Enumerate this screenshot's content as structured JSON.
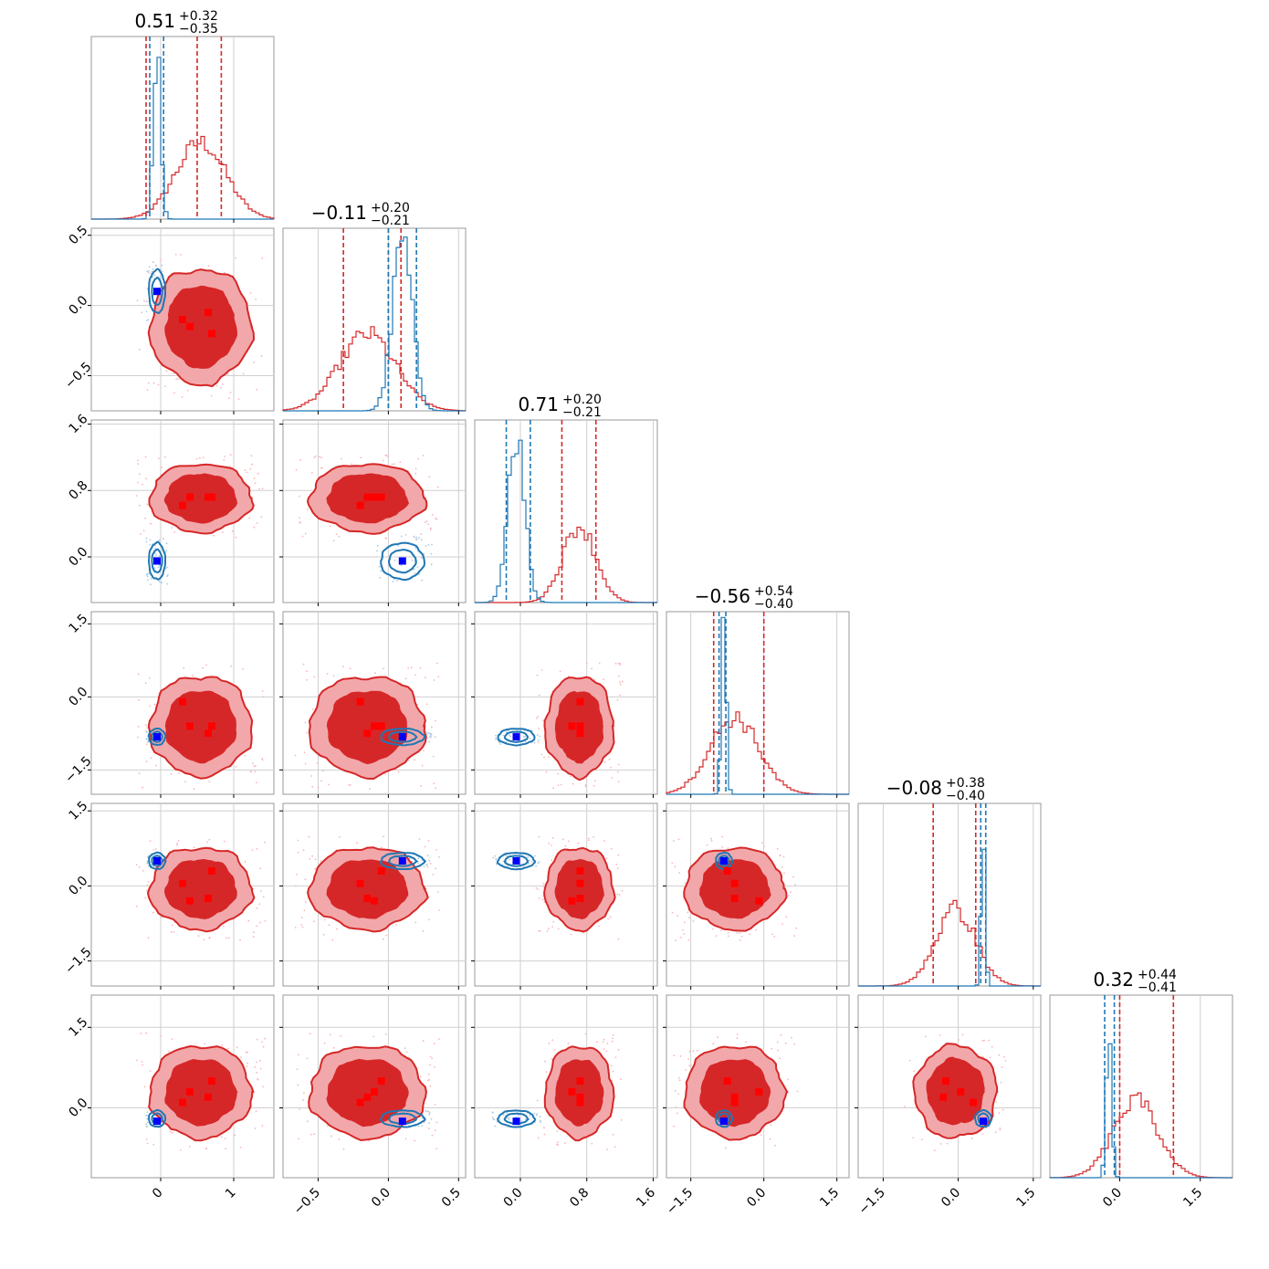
{
  "chart_data": {
    "type": "corner",
    "n_params": 6,
    "colors": {
      "red": "#d62728",
      "red_light": "#f2a8aa",
      "blue": "#1f77b4",
      "marker_blue": "#0000ff",
      "marker_red": "#ff0000"
    },
    "titles": [
      {
        "median": "0.51",
        "plus": "+0.32",
        "minus": "−0.35"
      },
      {
        "median": "−0.11",
        "plus": "+0.20",
        "minus": "−0.21"
      },
      {
        "median": "0.71",
        "plus": "+0.20",
        "minus": "−0.21"
      },
      {
        "median": "−0.56",
        "plus": "+0.54",
        "minus": "−0.40"
      },
      {
        "median": "−0.08",
        "plus": "+0.38",
        "minus": "−0.40"
      },
      {
        "median": "0.32",
        "plus": "+0.44",
        "minus": "−0.41"
      }
    ],
    "ranges": [
      [
        -0.95,
        1.55
      ],
      [
        -0.75,
        0.55
      ],
      [
        -0.55,
        1.65
      ],
      [
        -2.0,
        1.75
      ],
      [
        -2.0,
        1.65
      ],
      [
        -1.3,
        2.1
      ]
    ],
    "ticks": [
      {
        "values": [
          0,
          1
        ],
        "labels": [
          "0",
          "1"
        ]
      },
      {
        "values": [
          -0.5,
          0.0,
          0.5
        ],
        "labels": [
          "−0.5",
          "0.0",
          "0.5"
        ]
      },
      {
        "values": [
          0.0,
          0.8,
          1.6
        ],
        "labels": [
          "0.0",
          "0.8",
          "1.6"
        ]
      },
      {
        "values": [
          -1.5,
          0.0,
          1.5
        ],
        "labels": [
          "−1.5",
          "0.0",
          "1.5"
        ]
      },
      {
        "values": [
          -1.5,
          0.0,
          1.5
        ],
        "labels": [
          "−1.5",
          "0.0",
          "1.5"
        ]
      },
      {
        "values": [
          0.0,
          1.5
        ],
        "labels": [
          "0.0",
          "1.5"
        ]
      }
    ],
    "red_dist": [
      {
        "mean": 0.55,
        "std": 0.34,
        "q": [
          -0.2,
          0.5,
          0.83
        ]
      },
      {
        "mean": -0.15,
        "std": 0.2,
        "q": [
          -0.32,
          0.09,
          0.0
        ]
      },
      {
        "mean": 0.71,
        "std": 0.2,
        "q": [
          0.5,
          0.91
        ]
      },
      {
        "mean": -0.6,
        "std": 0.5,
        "q": [
          -1.03,
          0.0
        ]
      },
      {
        "mean": -0.05,
        "std": 0.4,
        "q": [
          -0.5,
          0.35
        ]
      },
      {
        "mean": 0.3,
        "std": 0.42,
        "q": [
          0.0,
          1.0
        ]
      }
    ],
    "blue_dist": [
      {
        "mean": -0.05,
        "std": 0.05,
        "q": [
          -0.15,
          0.04
        ]
      },
      {
        "mean": 0.1,
        "std": 0.07,
        "q": [
          0.0,
          0.2
        ]
      },
      {
        "mean": -0.05,
        "std": 0.1,
        "q": [
          -0.17,
          0.12
        ]
      },
      {
        "mean": -0.82,
        "std": 0.05,
        "q": [
          -0.92,
          -0.78
        ]
      },
      {
        "mean": 0.5,
        "std": 0.04,
        "q": [
          0.45,
          0.55
        ]
      },
      {
        "mean": -0.2,
        "std": 0.05,
        "q": [
          -0.28,
          -0.1
        ]
      }
    ],
    "red_markers": [
      [
        0.3,
        0.4,
        0.65,
        0.7
      ],
      [
        -0.2,
        -0.1,
        -0.15,
        -0.05
      ],
      [
        0.72,
        0.62,
        0.72,
        0.72
      ],
      [
        -0.6,
        -0.1,
        -0.6,
        -0.75
      ],
      [
        0.3,
        0.05,
        -0.3,
        -0.25
      ],
      [
        0.5,
        0.1,
        0.3,
        0.2
      ]
    ],
    "blue_marker": [
      -0.05,
      0.1,
      -0.05,
      -0.82,
      0.5,
      -0.25
    ]
  }
}
